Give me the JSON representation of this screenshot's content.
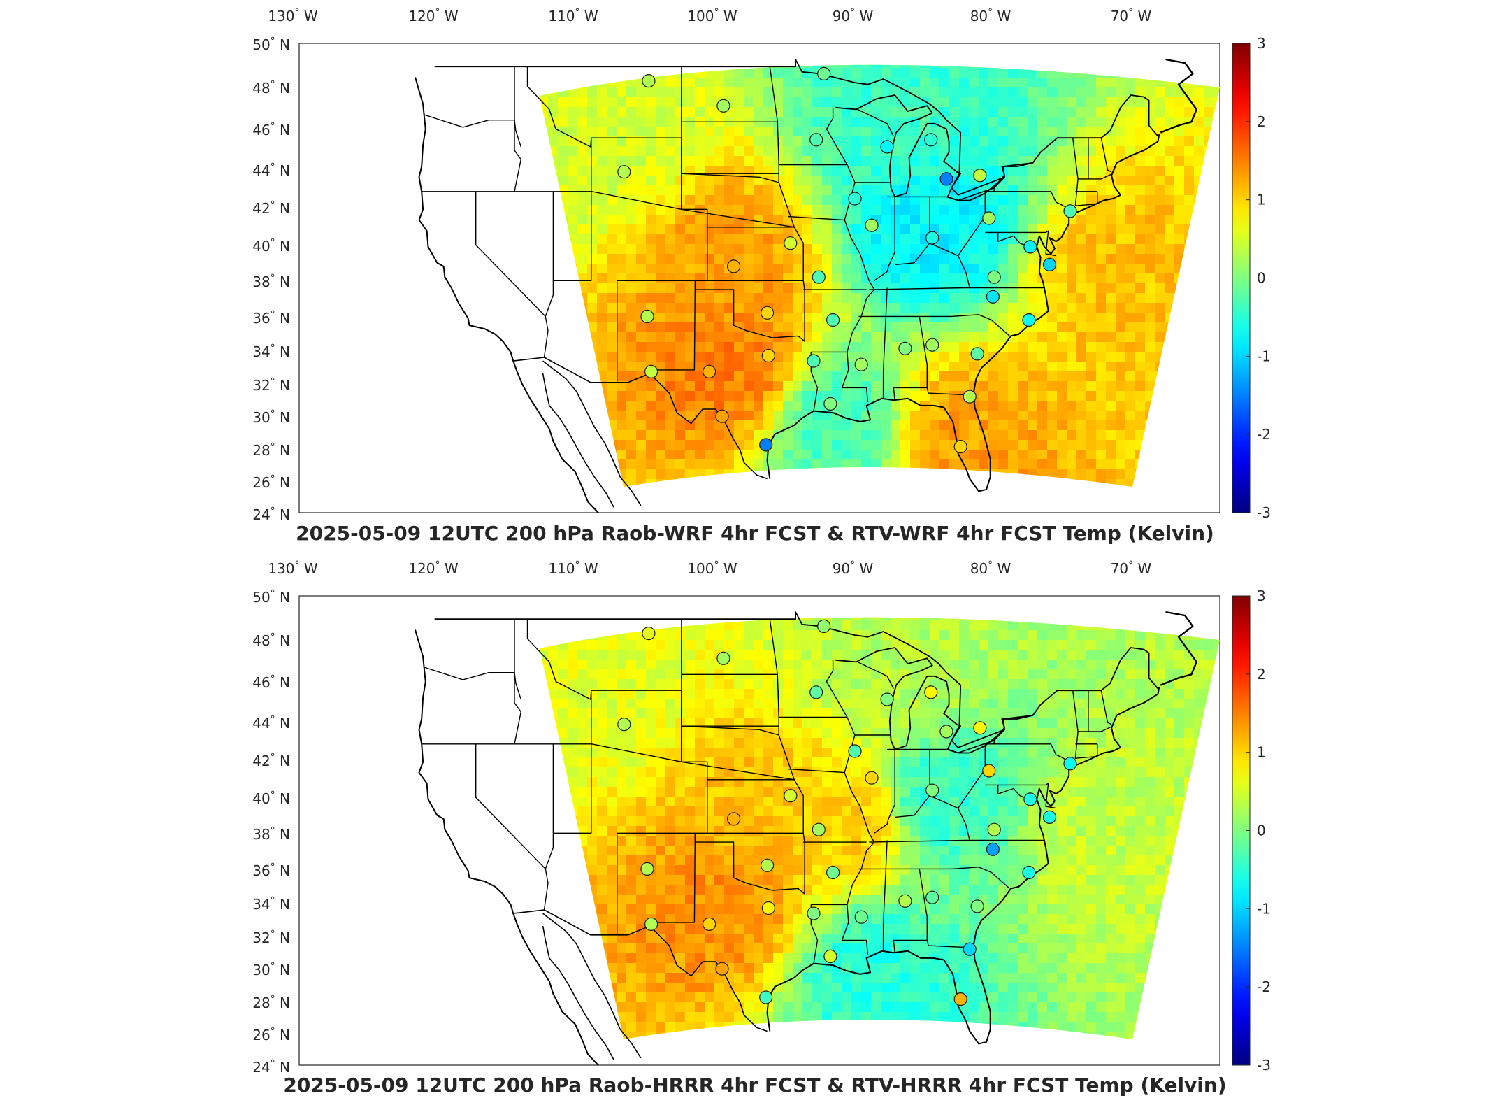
{
  "panels": [
    {
      "title": "2025-05-09 12UTC 200 hPa Raob-WRF 4hr FCST & RTV-WRF 4hr FCST Temp (Kelvin)",
      "lon_ticks": [
        "130° W",
        "120° W",
        "110° W",
        "100° W",
        "90° W",
        "80° W",
        "70° W"
      ],
      "lat_ticks": [
        "50° N",
        "48° N",
        "46° N",
        "44° N",
        "42° N",
        "40° N",
        "38° N",
        "36° N",
        "34° N",
        "32° N",
        "30° N",
        "28° N",
        "26° N",
        "24° N"
      ],
      "colorbar_ticks": [
        "3",
        "2",
        "1",
        "0",
        "-1",
        "-2",
        "-3"
      ],
      "field": {
        "regions": [
          {
            "label": "central plains warm",
            "lon": -100,
            "lat": 38,
            "value": 1.3
          },
          {
            "label": "southern plains warm",
            "lon": -100,
            "lat": 32,
            "value": 1.5
          },
          {
            "label": "ohio valley cool",
            "lon": -85,
            "lat": 40,
            "value": -0.8
          },
          {
            "label": "great lakes cool",
            "lon": -87,
            "lat": 46,
            "value": -0.4
          },
          {
            "label": "atlantic warm",
            "lon": -70,
            "lat": 37,
            "value": 1.1
          },
          {
            "label": "gulf cool",
            "lon": -92,
            "lat": 29,
            "value": -0.3
          },
          {
            "label": "northwest edge",
            "lon": -110,
            "lat": 45,
            "value": 0.5
          },
          {
            "label": "florida warm",
            "lon": -82,
            "lat": 28,
            "value": 1.3
          }
        ]
      },
      "stations": [
        {
          "lon": -106.6,
          "lat": 48.2,
          "value": 0.3
        },
        {
          "lon": -100.8,
          "lat": 46.8,
          "value": 0.2
        },
        {
          "lon": -93.6,
          "lat": 44.9,
          "value": -0.3
        },
        {
          "lon": -93.0,
          "lat": 48.6,
          "value": -0.1
        },
        {
          "lon": -88.1,
          "lat": 44.5,
          "value": -0.8
        },
        {
          "lon": -84.7,
          "lat": 44.9,
          "value": -0.5
        },
        {
          "lon": -83.5,
          "lat": 42.7,
          "value": -1.5
        },
        {
          "lon": -108.5,
          "lat": 43.1,
          "value": 0.3
        },
        {
          "lon": -90.6,
          "lat": 41.6,
          "value": -0.5
        },
        {
          "lon": -89.3,
          "lat": 40.1,
          "value": 0.2
        },
        {
          "lon": -95.6,
          "lat": 39.1,
          "value": 0.5
        },
        {
          "lon": -100.0,
          "lat": 37.8,
          "value": 1.2
        },
        {
          "lon": -93.4,
          "lat": 37.2,
          "value": -0.3
        },
        {
          "lon": -84.6,
          "lat": 39.4,
          "value": -0.6
        },
        {
          "lon": -80.2,
          "lat": 40.5,
          "value": 0.2
        },
        {
          "lon": -77.0,
          "lat": 38.9,
          "value": -0.8
        },
        {
          "lon": -79.8,
          "lat": 37.2,
          "value": 0.0
        },
        {
          "lon": -75.5,
          "lat": 37.9,
          "value": -1.0
        },
        {
          "lon": -79.9,
          "lat": 36.1,
          "value": -0.9
        },
        {
          "lon": -73.9,
          "lat": 40.9,
          "value": -0.3
        },
        {
          "lon": -80.9,
          "lat": 42.9,
          "value": 0.4
        },
        {
          "lon": -106.7,
          "lat": 35.0,
          "value": 0.3
        },
        {
          "lon": -97.4,
          "lat": 35.2,
          "value": 1.0
        },
        {
          "lon": -92.3,
          "lat": 34.8,
          "value": -0.3
        },
        {
          "lon": -106.4,
          "lat": 31.9,
          "value": 0.4
        },
        {
          "lon": -101.9,
          "lat": 31.9,
          "value": 1.2
        },
        {
          "lon": -97.3,
          "lat": 32.8,
          "value": 1.0
        },
        {
          "lon": -93.8,
          "lat": 32.5,
          "value": -0.3
        },
        {
          "lon": -90.1,
          "lat": 32.3,
          "value": 0.2
        },
        {
          "lon": -86.7,
          "lat": 33.2,
          "value": 0.0
        },
        {
          "lon": -84.6,
          "lat": 33.4,
          "value": 0.2
        },
        {
          "lon": -81.1,
          "lat": 32.9,
          "value": -0.2
        },
        {
          "lon": -77.1,
          "lat": 34.8,
          "value": -0.7
        },
        {
          "lon": -100.9,
          "lat": 29.4,
          "value": 1.3
        },
        {
          "lon": -97.5,
          "lat": 27.8,
          "value": -1.5
        },
        {
          "lon": -92.5,
          "lat": 30.1,
          "value": 0.0
        },
        {
          "lon": -81.7,
          "lat": 30.5,
          "value": 0.3
        },
        {
          "lon": -82.4,
          "lat": 27.7,
          "value": 1.0
        }
      ]
    },
    {
      "title": "2025-05-09 12UTC 200 hPa Raob-HRRR 4hr FCST & RTV-HRRR 4hr FCST Temp (Kelvin)",
      "lon_ticks": [
        "130° W",
        "120° W",
        "110° W",
        "100° W",
        "90° W",
        "80° W",
        "70° W"
      ],
      "lat_ticks": [
        "50° N",
        "48° N",
        "46° N",
        "44° N",
        "42° N",
        "40° N",
        "38° N",
        "36° N",
        "34° N",
        "32° N",
        "30° N",
        "28° N",
        "26° N",
        "24° N"
      ],
      "colorbar_ticks": [
        "3",
        "2",
        "1",
        "0",
        "-1",
        "-2",
        "-3"
      ],
      "field": {
        "regions": [
          {
            "label": "central plains warm",
            "lon": -98,
            "lat": 38,
            "value": 1.1
          },
          {
            "label": "southern plains warm",
            "lon": -101,
            "lat": 33,
            "value": 1.4
          },
          {
            "label": "ohio valley cool",
            "lon": -84,
            "lat": 39,
            "value": -0.4
          },
          {
            "label": "great lakes",
            "lon": -87,
            "lat": 46,
            "value": 0.3
          },
          {
            "label": "atlantic",
            "lon": -71,
            "lat": 37,
            "value": 0.4
          },
          {
            "label": "gulf cool",
            "lon": -89,
            "lat": 29,
            "value": -0.5
          },
          {
            "label": "northwest edge",
            "lon": -110,
            "lat": 45,
            "value": 0.6
          },
          {
            "label": "mississippi warm",
            "lon": -91,
            "lat": 38,
            "value": 1.0
          }
        ]
      },
      "stations": [
        {
          "lon": -106.6,
          "lat": 48.2,
          "value": 0.6
        },
        {
          "lon": -100.8,
          "lat": 46.8,
          "value": 0.2
        },
        {
          "lon": -93.6,
          "lat": 44.9,
          "value": -0.2
        },
        {
          "lon": -93.0,
          "lat": 48.6,
          "value": 0.1
        },
        {
          "lon": -88.1,
          "lat": 44.5,
          "value": 0.0
        },
        {
          "lon": -84.7,
          "lat": 44.9,
          "value": 0.8
        },
        {
          "lon": -83.5,
          "lat": 42.7,
          "value": 0.2
        },
        {
          "lon": -108.5,
          "lat": 43.1,
          "value": 0.3
        },
        {
          "lon": -90.6,
          "lat": 41.6,
          "value": -0.3
        },
        {
          "lon": -89.3,
          "lat": 40.1,
          "value": 1.0
        },
        {
          "lon": -95.6,
          "lat": 39.1,
          "value": 0.5
        },
        {
          "lon": -100.0,
          "lat": 37.8,
          "value": 1.2
        },
        {
          "lon": -93.4,
          "lat": 37.2,
          "value": 0.2
        },
        {
          "lon": -84.6,
          "lat": 39.4,
          "value": 0.0
        },
        {
          "lon": -80.2,
          "lat": 40.5,
          "value": 1.0
        },
        {
          "lon": -77.0,
          "lat": 38.9,
          "value": -0.6
        },
        {
          "lon": -79.8,
          "lat": 37.2,
          "value": 0.3
        },
        {
          "lon": -75.5,
          "lat": 37.9,
          "value": -0.6
        },
        {
          "lon": -79.9,
          "lat": 36.1,
          "value": -1.3
        },
        {
          "lon": -73.9,
          "lat": 40.9,
          "value": -0.7
        },
        {
          "lon": -80.9,
          "lat": 42.9,
          "value": 0.8
        },
        {
          "lon": -106.7,
          "lat": 35.0,
          "value": 0.3
        },
        {
          "lon": -97.4,
          "lat": 35.2,
          "value": 0.3
        },
        {
          "lon": -92.3,
          "lat": 34.8,
          "value": -0.1
        },
        {
          "lon": -106.4,
          "lat": 31.9,
          "value": 0.3
        },
        {
          "lon": -101.9,
          "lat": 31.9,
          "value": 1.0
        },
        {
          "lon": -97.3,
          "lat": 32.8,
          "value": 0.8
        },
        {
          "lon": -93.8,
          "lat": 32.5,
          "value": 0.0
        },
        {
          "lon": -90.1,
          "lat": 32.3,
          "value": -0.1
        },
        {
          "lon": -86.7,
          "lat": 33.2,
          "value": 0.3
        },
        {
          "lon": -84.6,
          "lat": 33.4,
          "value": -0.2
        },
        {
          "lon": -81.1,
          "lat": 32.9,
          "value": 0.0
        },
        {
          "lon": -77.1,
          "lat": 34.8,
          "value": -0.6
        },
        {
          "lon": -100.9,
          "lat": 29.4,
          "value": 1.3
        },
        {
          "lon": -97.5,
          "lat": 27.8,
          "value": -0.4
        },
        {
          "lon": -92.5,
          "lat": 30.1,
          "value": 0.5
        },
        {
          "lon": -81.7,
          "lat": 30.5,
          "value": -1.0
        },
        {
          "lon": -82.4,
          "lat": 27.7,
          "value": 1.2
        }
      ]
    }
  ],
  "colormap": "jet",
  "colorbar_range": [
    -3,
    3
  ]
}
